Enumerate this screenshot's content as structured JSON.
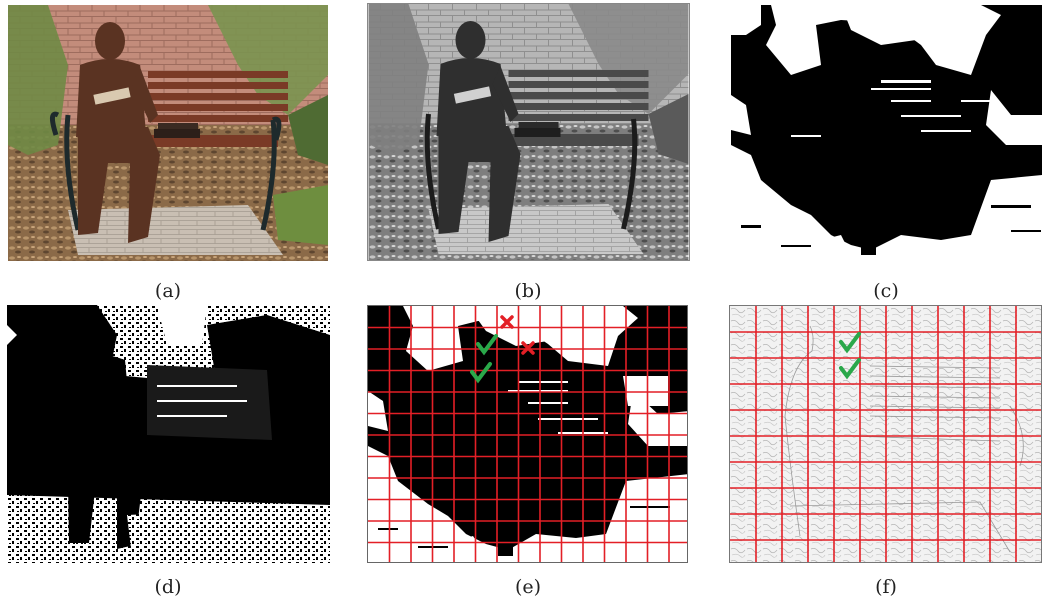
{
  "panels": [
    {
      "id": "a",
      "caption": "(a)"
    },
    {
      "id": "b",
      "caption": "(b)"
    },
    {
      "id": "c",
      "caption": "(c)"
    },
    {
      "id": "d",
      "caption": "(d)"
    },
    {
      "id": "e",
      "caption": "(e)"
    },
    {
      "id": "f",
      "caption": "(f)"
    }
  ],
  "colors": {
    "grid_line": "#e31f26",
    "check_mark": "#2aa84a",
    "cross_mark": "#e31f26",
    "brick_wall": "#b77a6a",
    "bronze": "#5a3322",
    "bench_wood": "#7a3a26",
    "foliage": "#6f8a45"
  },
  "icons": [
    "check-icon",
    "cross-icon"
  ]
}
